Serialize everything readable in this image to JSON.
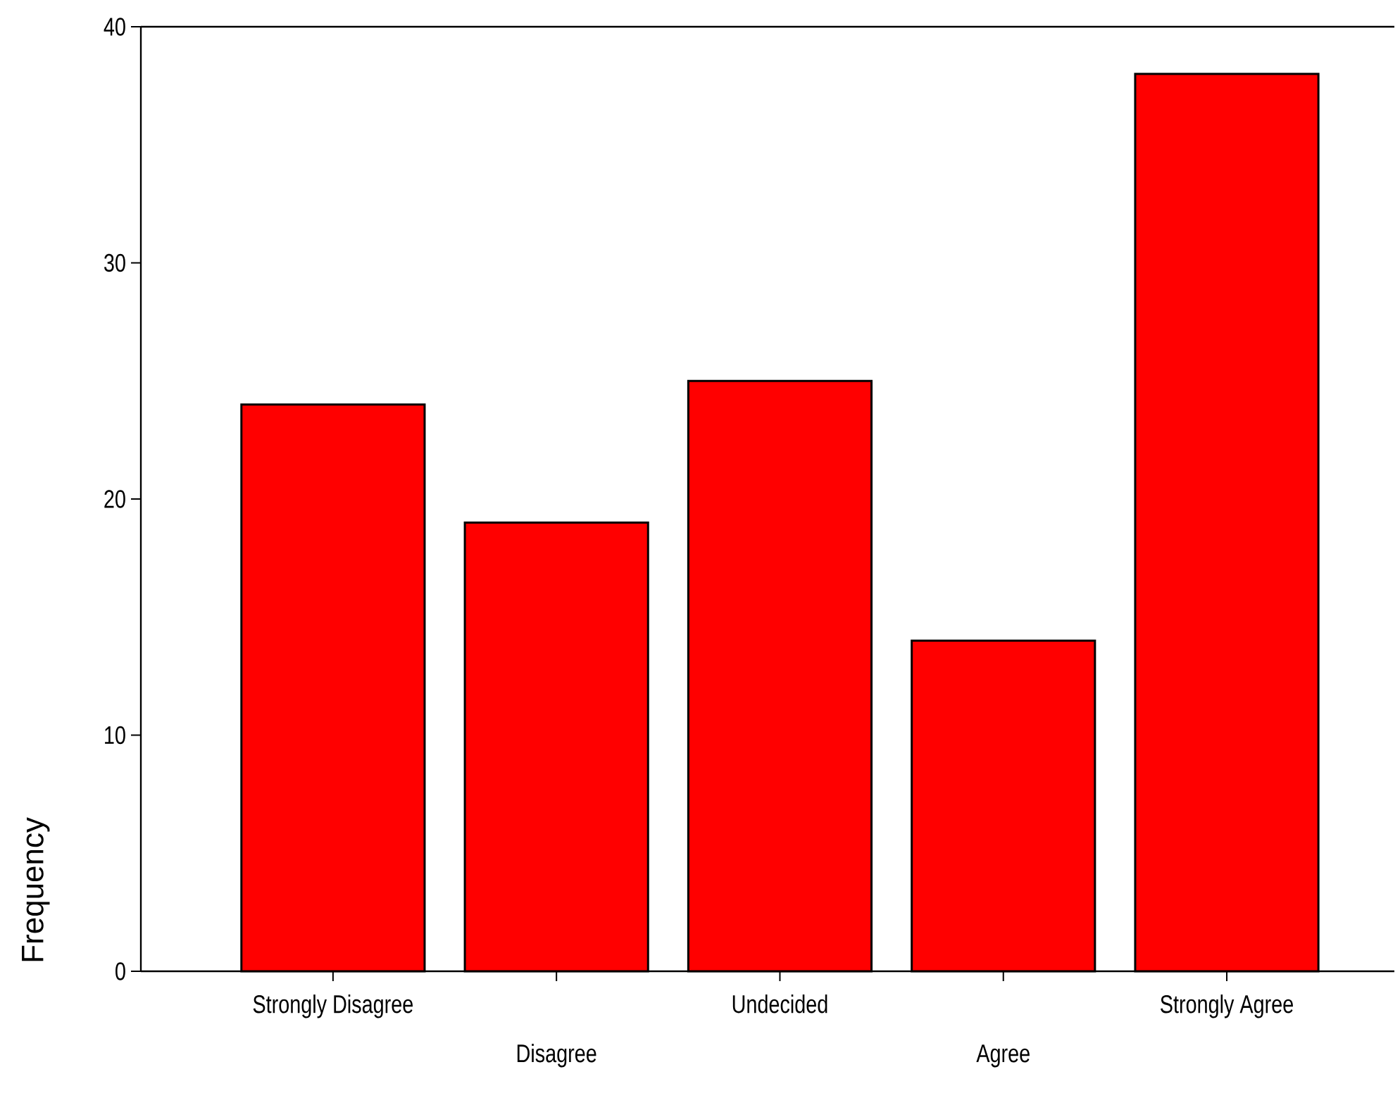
{
  "chart_data": {
    "type": "bar",
    "ylabel": "Frequency",
    "categories": [
      "Strongly Disagree",
      "Disagree",
      "Undecided",
      "Agree",
      "Strongly Agree"
    ],
    "values": [
      24,
      19,
      25,
      14,
      38
    ],
    "color": "#ff0000",
    "ylim": [
      0,
      40
    ],
    "yticks": [
      0,
      10,
      20,
      30,
      40
    ]
  }
}
